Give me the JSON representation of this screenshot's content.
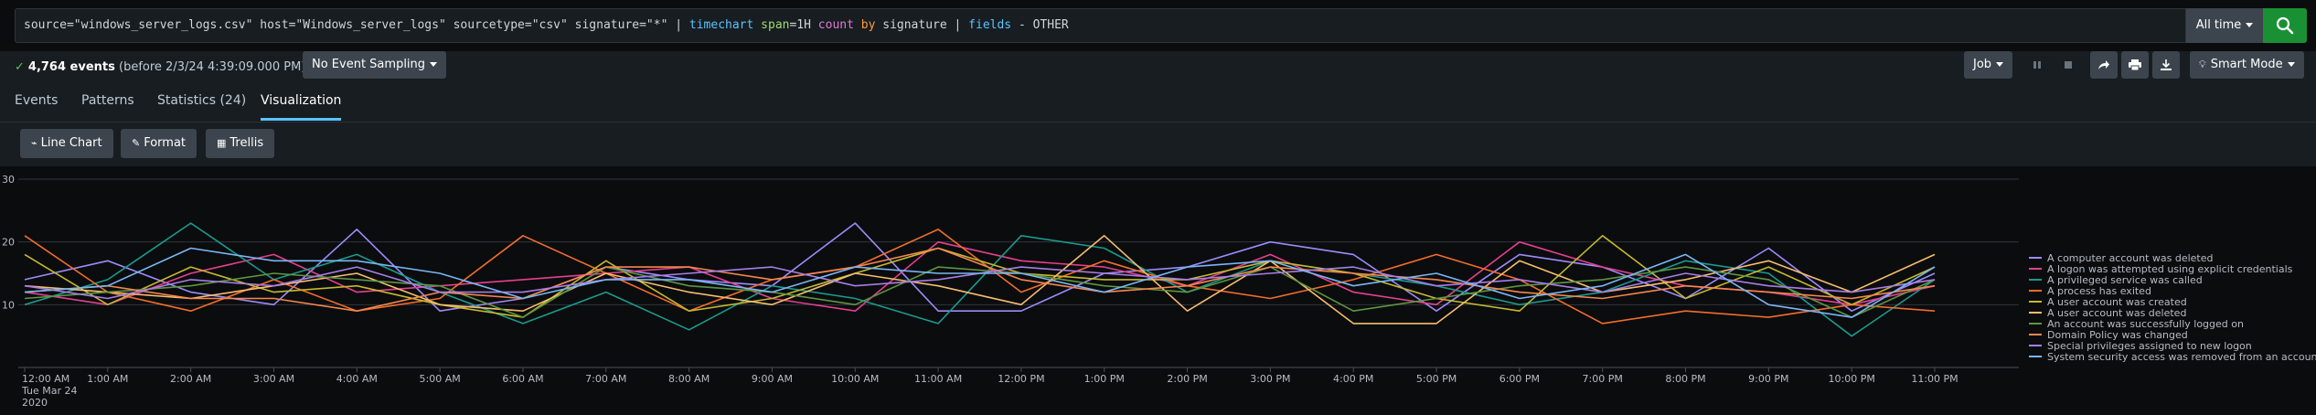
{
  "search": {
    "query_parts": {
      "p1": "source=\"windows_server_logs.csv\" host=\"Windows_server_logs\" sourcetype=\"csv\" signature=\"*\" | ",
      "p2": "timechart",
      "p3": " ",
      "p4": "span",
      "p5": "=1H ",
      "p6": "count",
      "p7": " ",
      "p8": "by",
      "p9": " signature | ",
      "p10": "fields",
      "p11": " - OTHER"
    },
    "time_range": "All time"
  },
  "status": {
    "count": "4,764 events",
    "before": "(before 2/3/24 4:39:09.000 PM)",
    "sampling": "No Event Sampling",
    "job": "Job",
    "smart_mode": "Smart Mode"
  },
  "tabs": {
    "events": "Events",
    "patterns": "Patterns",
    "statistics": "Statistics (24)",
    "visualization": "Visualization"
  },
  "viz_toolbar": {
    "line_chart": "Line Chart",
    "format": "Format",
    "trellis": "Trellis"
  },
  "colors": {
    "background": "#0b0c0e",
    "accent": "#5cc3ff",
    "search_green": "#1a9035"
  },
  "chart_data": {
    "type": "line",
    "x": [
      "12:00 AM",
      "1:00 AM",
      "2:00 AM",
      "3:00 AM",
      "4:00 AM",
      "5:00 AM",
      "6:00 AM",
      "7:00 AM",
      "8:00 AM",
      "9:00 AM",
      "10:00 AM",
      "11:00 AM",
      "12:00 PM",
      "1:00 PM",
      "2:00 PM",
      "3:00 PM",
      "4:00 PM",
      "5:00 PM",
      "6:00 PM",
      "7:00 PM",
      "8:00 PM",
      "9:00 PM",
      "10:00 PM",
      "11:00 PM"
    ],
    "x_date_sub": [
      "Tue Mar 24",
      "2020"
    ],
    "ylim": [
      0,
      30
    ],
    "yticks": [
      10,
      20,
      30
    ],
    "grid": true,
    "legend_position": "right",
    "series": [
      {
        "name": "A computer account was deleted",
        "color": "#9e8bfa",
        "values": [
          14,
          17,
          12,
          10,
          22,
          9,
          11,
          16,
          14,
          13,
          23,
          9,
          9,
          15,
          16,
          20,
          18,
          9,
          18,
          16,
          11,
          19,
          9,
          15
        ]
      },
      {
        "name": "A logon was attempted using explicit credentials",
        "color": "#e3408e",
        "values": [
          12,
          10,
          15,
          18,
          12,
          13,
          14,
          15,
          16,
          11,
          9,
          20,
          17,
          16,
          13,
          18,
          12,
          10,
          20,
          16,
          13,
          12,
          10,
          13
        ]
      },
      {
        "name": "A privileged service was called",
        "color": "#1a9a8c",
        "values": [
          10,
          14,
          23,
          14,
          18,
          12,
          7,
          12,
          6,
          13,
          11,
          7,
          21,
          19,
          12,
          17,
          15,
          13,
          10,
          12,
          17,
          15,
          5,
          14
        ]
      },
      {
        "name": "A process has exited",
        "color": "#f26d2c",
        "values": [
          21,
          12,
          9,
          14,
          9,
          11,
          21,
          15,
          9,
          14,
          16,
          22,
          12,
          17,
          13,
          11,
          14,
          18,
          14,
          7,
          9,
          8,
          10,
          9
        ]
      },
      {
        "name": "A user account was created",
        "color": "#c4b92d",
        "values": [
          18,
          10,
          16,
          12,
          13,
          10,
          8,
          17,
          9,
          11,
          15,
          19,
          15,
          14,
          14,
          17,
          15,
          11,
          9,
          21,
          11,
          16,
          10,
          16
        ]
      },
      {
        "name": "A user account was deleted",
        "color": "#f6bd6e",
        "values": [
          13,
          12,
          11,
          13,
          15,
          10,
          9,
          15,
          12,
          10,
          15,
          13,
          10,
          21,
          9,
          17,
          7,
          7,
          17,
          12,
          14,
          17,
          12,
          18
        ]
      },
      {
        "name": "An account was successfully logged on",
        "color": "#5c9641",
        "values": [
          11,
          12,
          13,
          15,
          14,
          13,
          8,
          16,
          13,
          12,
          10,
          16,
          15,
          13,
          12,
          16,
          9,
          11,
          13,
          14,
          16,
          14,
          8,
          14
        ]
      },
      {
        "name": "Domain Policy was changed",
        "color": "#f5874d",
        "values": [
          12,
          13,
          11,
          11,
          9,
          12,
          11,
          16,
          16,
          14,
          16,
          19,
          14,
          12,
          13,
          16,
          15,
          14,
          12,
          11,
          13,
          12,
          11,
          13
        ]
      },
      {
        "name": "Special privileges assigned to new logon",
        "color": "#a77ee6",
        "values": [
          13,
          11,
          14,
          13,
          16,
          12,
          12,
          14,
          15,
          16,
          13,
          14,
          16,
          15,
          14,
          15,
          16,
          13,
          14,
          12,
          15,
          13,
          12,
          14
        ]
      },
      {
        "name": "System security access was removed from an account",
        "color": "#78b6f5",
        "values": [
          12,
          13,
          19,
          17,
          17,
          15,
          11,
          14,
          14,
          12,
          16,
          15,
          15,
          12,
          16,
          17,
          13,
          15,
          11,
          13,
          18,
          10,
          8,
          16
        ]
      }
    ]
  }
}
